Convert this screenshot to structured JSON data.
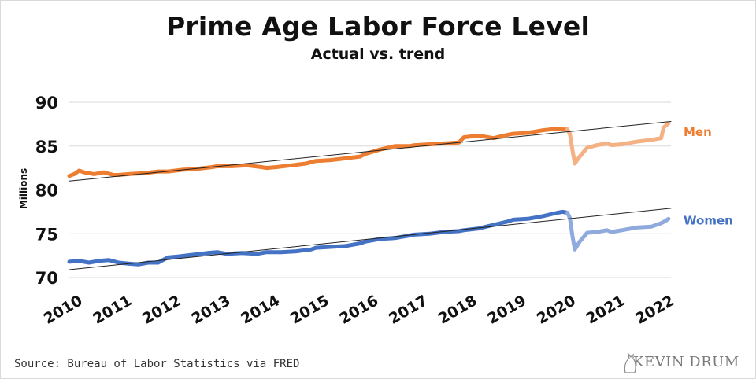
{
  "title": "Prime Age Labor Force Level",
  "subtitle": "Actual vs. trend",
  "source": "Source: Bureau of Labor Statistics via FRED",
  "logo": "KEVIN DRUM",
  "chart_data": {
    "type": "line",
    "title": "Prime Age Labor Force Level",
    "subtitle": "Actual vs. trend",
    "xlabel": "",
    "ylabel": "Millions",
    "xlim": [
      2010,
      2022.2
    ],
    "ylim": [
      70,
      90
    ],
    "y_ticks": [
      70,
      75,
      80,
      85,
      90
    ],
    "x_ticks": [
      "2010",
      "2011",
      "2012",
      "2013",
      "2014",
      "2015",
      "2016",
      "2017",
      "2018",
      "2019",
      "2020",
      "2021",
      "2022"
    ],
    "grid": "horizontal",
    "colors": {
      "men": "#ed7d31",
      "men_light": "#f4b183",
      "women": "#4472c4",
      "women_light": "#8faadc",
      "trend": "#222222"
    },
    "series": [
      {
        "name": "Men",
        "color": "#ed7d31",
        "x": [
          2010.0,
          2010.1,
          2010.2,
          2010.3,
          2010.5,
          2010.7,
          2010.9,
          2011.0,
          2011.2,
          2011.5,
          2011.8,
          2012.0,
          2012.3,
          2012.6,
          2012.9,
          2013.0,
          2013.3,
          2013.6,
          2013.9,
          2014.0,
          2014.2,
          2014.5,
          2014.8,
          2015.0,
          2015.3,
          2015.6,
          2015.9,
          2016.0,
          2016.3,
          2016.6,
          2016.9,
          2017.0,
          2017.3,
          2017.6,
          2017.9,
          2018.0,
          2018.3,
          2018.6,
          2018.9,
          2019.0,
          2019.3,
          2019.6,
          2019.9,
          2020.0,
          2020.1
        ],
        "values": [
          81.6,
          81.8,
          82.2,
          82.0,
          81.8,
          82.0,
          81.7,
          81.7,
          81.8,
          81.9,
          82.1,
          82.1,
          82.3,
          82.4,
          82.6,
          82.7,
          82.7,
          82.8,
          82.6,
          82.5,
          82.6,
          82.8,
          83.0,
          83.3,
          83.4,
          83.6,
          83.8,
          84.1,
          84.6,
          85.0,
          85.0,
          85.1,
          85.2,
          85.3,
          85.4,
          86.0,
          86.2,
          85.9,
          86.3,
          86.4,
          86.5,
          86.8,
          87.0,
          86.9,
          86.9
        ]
      },
      {
        "name": "Men (after 2020)",
        "color": "#f4b183",
        "x": [
          2020.1,
          2020.15,
          2020.2,
          2020.25,
          2020.35,
          2020.5,
          2020.7,
          2020.9,
          2021.0,
          2021.2,
          2021.5,
          2021.8,
          2022.0,
          2022.05,
          2022.15
        ],
        "values": [
          86.9,
          86.4,
          84.6,
          83.0,
          83.8,
          84.8,
          85.1,
          85.3,
          85.1,
          85.2,
          85.5,
          85.7,
          85.9,
          87.1,
          87.6
        ]
      },
      {
        "name": "Women",
        "color": "#4472c4",
        "x": [
          2010.0,
          2010.2,
          2010.4,
          2010.6,
          2010.8,
          2011.0,
          2011.2,
          2011.4,
          2011.6,
          2011.8,
          2012.0,
          2012.2,
          2012.5,
          2012.8,
          2013.0,
          2013.2,
          2013.5,
          2013.8,
          2014.0,
          2014.3,
          2014.6,
          2014.9,
          2015.0,
          2015.3,
          2015.6,
          2015.9,
          2016.0,
          2016.3,
          2016.6,
          2016.9,
          2017.0,
          2017.3,
          2017.6,
          2017.9,
          2018.0,
          2018.3,
          2018.6,
          2018.9,
          2019.0,
          2019.3,
          2019.6,
          2019.9,
          2020.0,
          2020.1
        ],
        "values": [
          71.8,
          71.9,
          71.7,
          71.9,
          72.0,
          71.7,
          71.6,
          71.5,
          71.7,
          71.7,
          72.3,
          72.4,
          72.6,
          72.8,
          72.9,
          72.7,
          72.8,
          72.7,
          72.9,
          72.9,
          73.0,
          73.2,
          73.4,
          73.5,
          73.6,
          73.9,
          74.1,
          74.4,
          74.5,
          74.8,
          74.9,
          75.0,
          75.2,
          75.3,
          75.4,
          75.6,
          76.0,
          76.4,
          76.6,
          76.7,
          77.0,
          77.4,
          77.5,
          77.4
        ]
      },
      {
        "name": "Women (after 2020)",
        "color": "#8faadc",
        "x": [
          2020.1,
          2020.15,
          2020.2,
          2020.25,
          2020.35,
          2020.5,
          2020.7,
          2020.9,
          2021.0,
          2021.2,
          2021.5,
          2021.8,
          2022.0,
          2022.1,
          2022.15
        ],
        "values": [
          77.4,
          76.8,
          74.8,
          73.2,
          74.1,
          75.1,
          75.2,
          75.4,
          75.2,
          75.4,
          75.7,
          75.8,
          76.2,
          76.5,
          76.7
        ]
      },
      {
        "name": "Men trend",
        "color": "#222222",
        "x": [
          2010.0,
          2022.2
        ],
        "values": [
          81.0,
          87.8
        ]
      },
      {
        "name": "Women trend",
        "color": "#222222",
        "x": [
          2010.0,
          2022.2
        ],
        "values": [
          70.9,
          77.9
        ]
      }
    ],
    "series_labels": [
      {
        "text": "Men",
        "color": "#ed7d31",
        "y": 86.7
      },
      {
        "text": "Women",
        "color": "#4472c4",
        "y": 76.6
      }
    ]
  }
}
